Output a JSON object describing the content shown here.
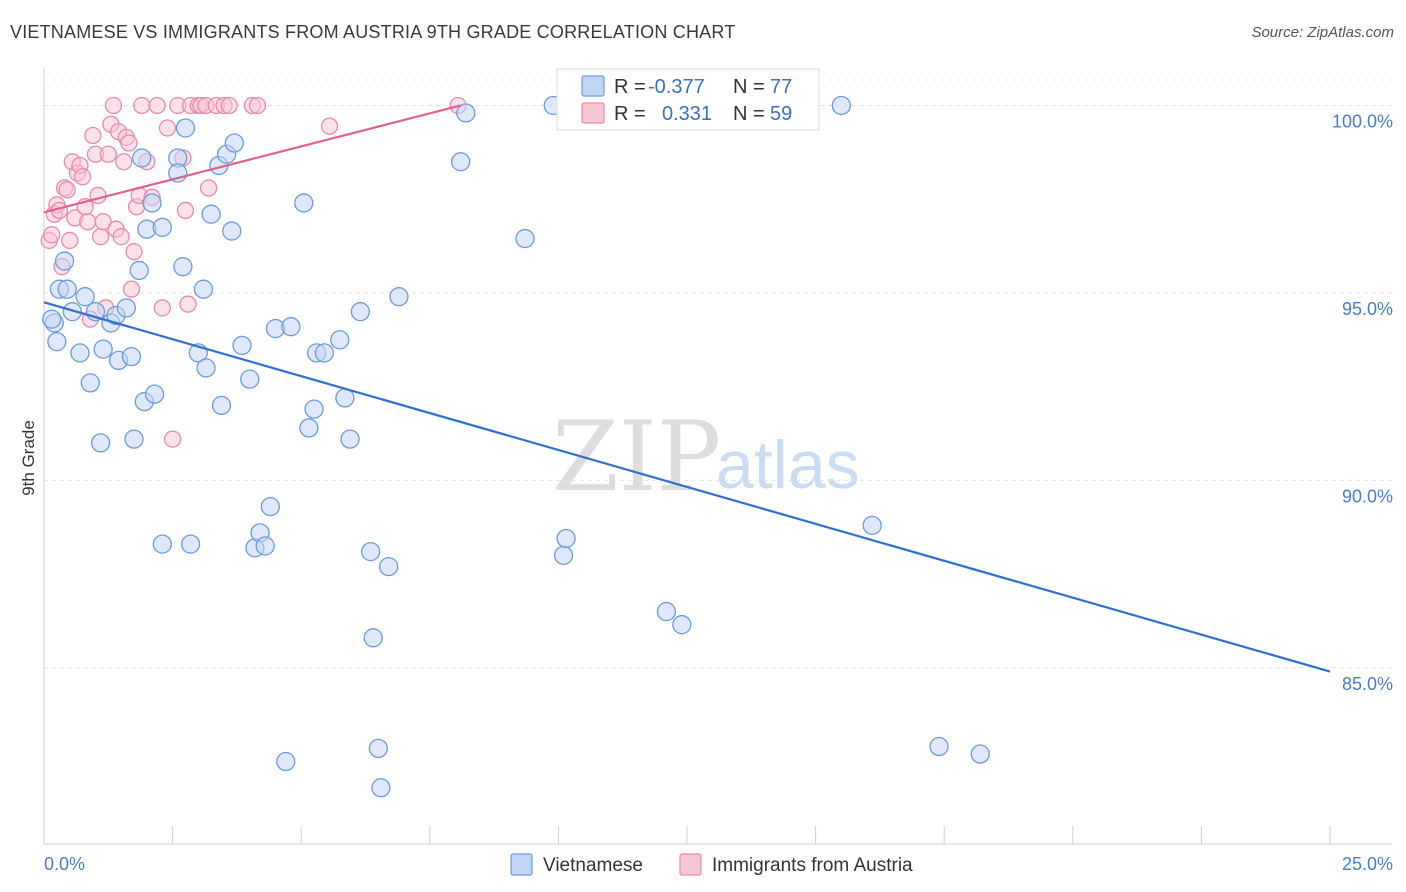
{
  "chart_data": {
    "type": "scatter",
    "title": "VIETNAMESE VS IMMIGRANTS FROM AUSTRIA 9TH GRADE CORRELATION CHART",
    "source": "Source: ZipAtlas.com",
    "xlabel": "",
    "ylabel": "9th Grade",
    "xlim": [
      0,
      25
    ],
    "ylim": [
      80.3,
      101.0
    ],
    "x_tick_labels": [
      "0.0%",
      "25.0%"
    ],
    "y_ticks": [
      100,
      95,
      90,
      85
    ],
    "y_tick_labels": [
      "100.0%",
      "95.0%",
      "90.0%",
      "85.0%"
    ],
    "grid": true,
    "watermark": {
      "zip": "ZIP",
      "atlas": "atlas"
    },
    "legend": {
      "r_label": "R =",
      "n_label": "N =",
      "entries": [
        {
          "r": "-0.377",
          "n": "77"
        },
        {
          "r": "0.331",
          "n": "59"
        }
      ]
    },
    "series": [
      {
        "name": "Vietnamese",
        "color": "#6a9be0",
        "fill": "#c2d6f4",
        "trend": {
          "x0": 0.0,
          "y0": 94.75,
          "x1": 25.0,
          "y1": 84.9
        },
        "points": [
          [
            0.2,
            94.2
          ],
          [
            0.25,
            93.7
          ],
          [
            0.3,
            95.1
          ],
          [
            0.4,
            95.85
          ],
          [
            0.45,
            95.1
          ],
          [
            0.55,
            94.5
          ],
          [
            0.7,
            93.4
          ],
          [
            0.8,
            94.9
          ],
          [
            0.9,
            92.6
          ],
          [
            1.0,
            94.5
          ],
          [
            1.1,
            91.0
          ],
          [
            1.15,
            93.5
          ],
          [
            1.3,
            94.2
          ],
          [
            1.4,
            94.4
          ],
          [
            1.45,
            93.2
          ],
          [
            1.6,
            94.6
          ],
          [
            1.7,
            93.3
          ],
          [
            1.75,
            91.1
          ],
          [
            1.85,
            95.6
          ],
          [
            1.9,
            98.6
          ],
          [
            1.95,
            92.1
          ],
          [
            2.0,
            96.7
          ],
          [
            2.1,
            97.4
          ],
          [
            2.15,
            92.3
          ],
          [
            2.3,
            96.75
          ],
          [
            2.3,
            88.3
          ],
          [
            2.6,
            98.6
          ],
          [
            2.6,
            98.2
          ],
          [
            2.7,
            95.7
          ],
          [
            2.75,
            99.4
          ],
          [
            2.85,
            88.3
          ],
          [
            3.0,
            93.4
          ],
          [
            3.1,
            95.1
          ],
          [
            3.15,
            93.0
          ],
          [
            3.25,
            97.1
          ],
          [
            3.4,
            98.4
          ],
          [
            3.45,
            92.0
          ],
          [
            3.55,
            98.7
          ],
          [
            3.65,
            96.65
          ],
          [
            3.7,
            99.0
          ],
          [
            3.85,
            93.6
          ],
          [
            4.0,
            92.7
          ],
          [
            4.1,
            88.2
          ],
          [
            4.2,
            88.6
          ],
          [
            4.3,
            88.25
          ],
          [
            4.4,
            89.3
          ],
          [
            4.5,
            94.05
          ],
          [
            4.7,
            82.5
          ],
          [
            4.8,
            94.1
          ],
          [
            5.05,
            97.4
          ],
          [
            5.15,
            91.4
          ],
          [
            5.25,
            91.9
          ],
          [
            5.3,
            93.4
          ],
          [
            5.45,
            93.4
          ],
          [
            5.75,
            93.75
          ],
          [
            5.85,
            92.2
          ],
          [
            5.95,
            91.1
          ],
          [
            6.15,
            94.5
          ],
          [
            6.35,
            88.1
          ],
          [
            6.4,
            85.8
          ],
          [
            6.5,
            82.85
          ],
          [
            6.55,
            81.8
          ],
          [
            6.7,
            87.7
          ],
          [
            6.9,
            94.9
          ],
          [
            8.1,
            98.5
          ],
          [
            8.2,
            99.8
          ],
          [
            9.35,
            96.45
          ],
          [
            9.9,
            100.0
          ],
          [
            10.1,
            88.0
          ],
          [
            10.15,
            88.45
          ],
          [
            12.1,
            86.5
          ],
          [
            12.4,
            86.15
          ],
          [
            15.5,
            100.0
          ],
          [
            16.1,
            88.8
          ],
          [
            17.4,
            82.9
          ],
          [
            18.2,
            82.7
          ],
          [
            0.15,
            94.3
          ]
        ]
      },
      {
        "name": "Immigrants from Austria",
        "color": "#e98aa9",
        "fill": "#f7c6d6",
        "trend": {
          "x0": 0.0,
          "y0": 97.15,
          "x1": 8.1,
          "y1": 100.0
        },
        "points": [
          [
            0.1,
            96.4
          ],
          [
            0.15,
            96.55
          ],
          [
            0.2,
            97.1
          ],
          [
            0.25,
            97.35
          ],
          [
            0.3,
            97.2
          ],
          [
            0.35,
            95.7
          ],
          [
            0.4,
            97.8
          ],
          [
            0.45,
            97.75
          ],
          [
            0.5,
            96.4
          ],
          [
            0.55,
            98.5
          ],
          [
            0.6,
            97.0
          ],
          [
            0.65,
            98.2
          ],
          [
            0.7,
            98.4
          ],
          [
            0.75,
            98.1
          ],
          [
            0.8,
            97.3
          ],
          [
            0.85,
            96.9
          ],
          [
            0.9,
            94.3
          ],
          [
            0.95,
            99.2
          ],
          [
            1.0,
            98.7
          ],
          [
            1.05,
            97.6
          ],
          [
            1.1,
            96.5
          ],
          [
            1.15,
            96.9
          ],
          [
            1.2,
            94.6
          ],
          [
            1.25,
            98.7
          ],
          [
            1.3,
            99.5
          ],
          [
            1.35,
            100.0
          ],
          [
            1.4,
            96.7
          ],
          [
            1.45,
            99.3
          ],
          [
            1.5,
            96.5
          ],
          [
            1.55,
            98.5
          ],
          [
            1.6,
            99.15
          ],
          [
            1.65,
            99.0
          ],
          [
            1.7,
            95.1
          ],
          [
            1.75,
            96.1
          ],
          [
            1.8,
            97.3
          ],
          [
            1.85,
            97.6
          ],
          [
            1.9,
            100.0
          ],
          [
            2.0,
            98.5
          ],
          [
            2.1,
            97.55
          ],
          [
            2.2,
            100.0
          ],
          [
            2.3,
            94.6
          ],
          [
            2.4,
            99.4
          ],
          [
            2.5,
            91.1
          ],
          [
            2.6,
            100.0
          ],
          [
            2.7,
            98.6
          ],
          [
            2.75,
            97.2
          ],
          [
            2.8,
            94.7
          ],
          [
            2.85,
            100.0
          ],
          [
            3.0,
            100.0
          ],
          [
            3.05,
            100.0
          ],
          [
            3.15,
            100.0
          ],
          [
            3.2,
            97.8
          ],
          [
            3.35,
            100.0
          ],
          [
            3.5,
            100.0
          ],
          [
            3.6,
            100.0
          ],
          [
            4.05,
            100.0
          ],
          [
            4.15,
            100.0
          ],
          [
            5.55,
            99.45
          ],
          [
            8.05,
            100.0
          ]
        ]
      }
    ]
  }
}
